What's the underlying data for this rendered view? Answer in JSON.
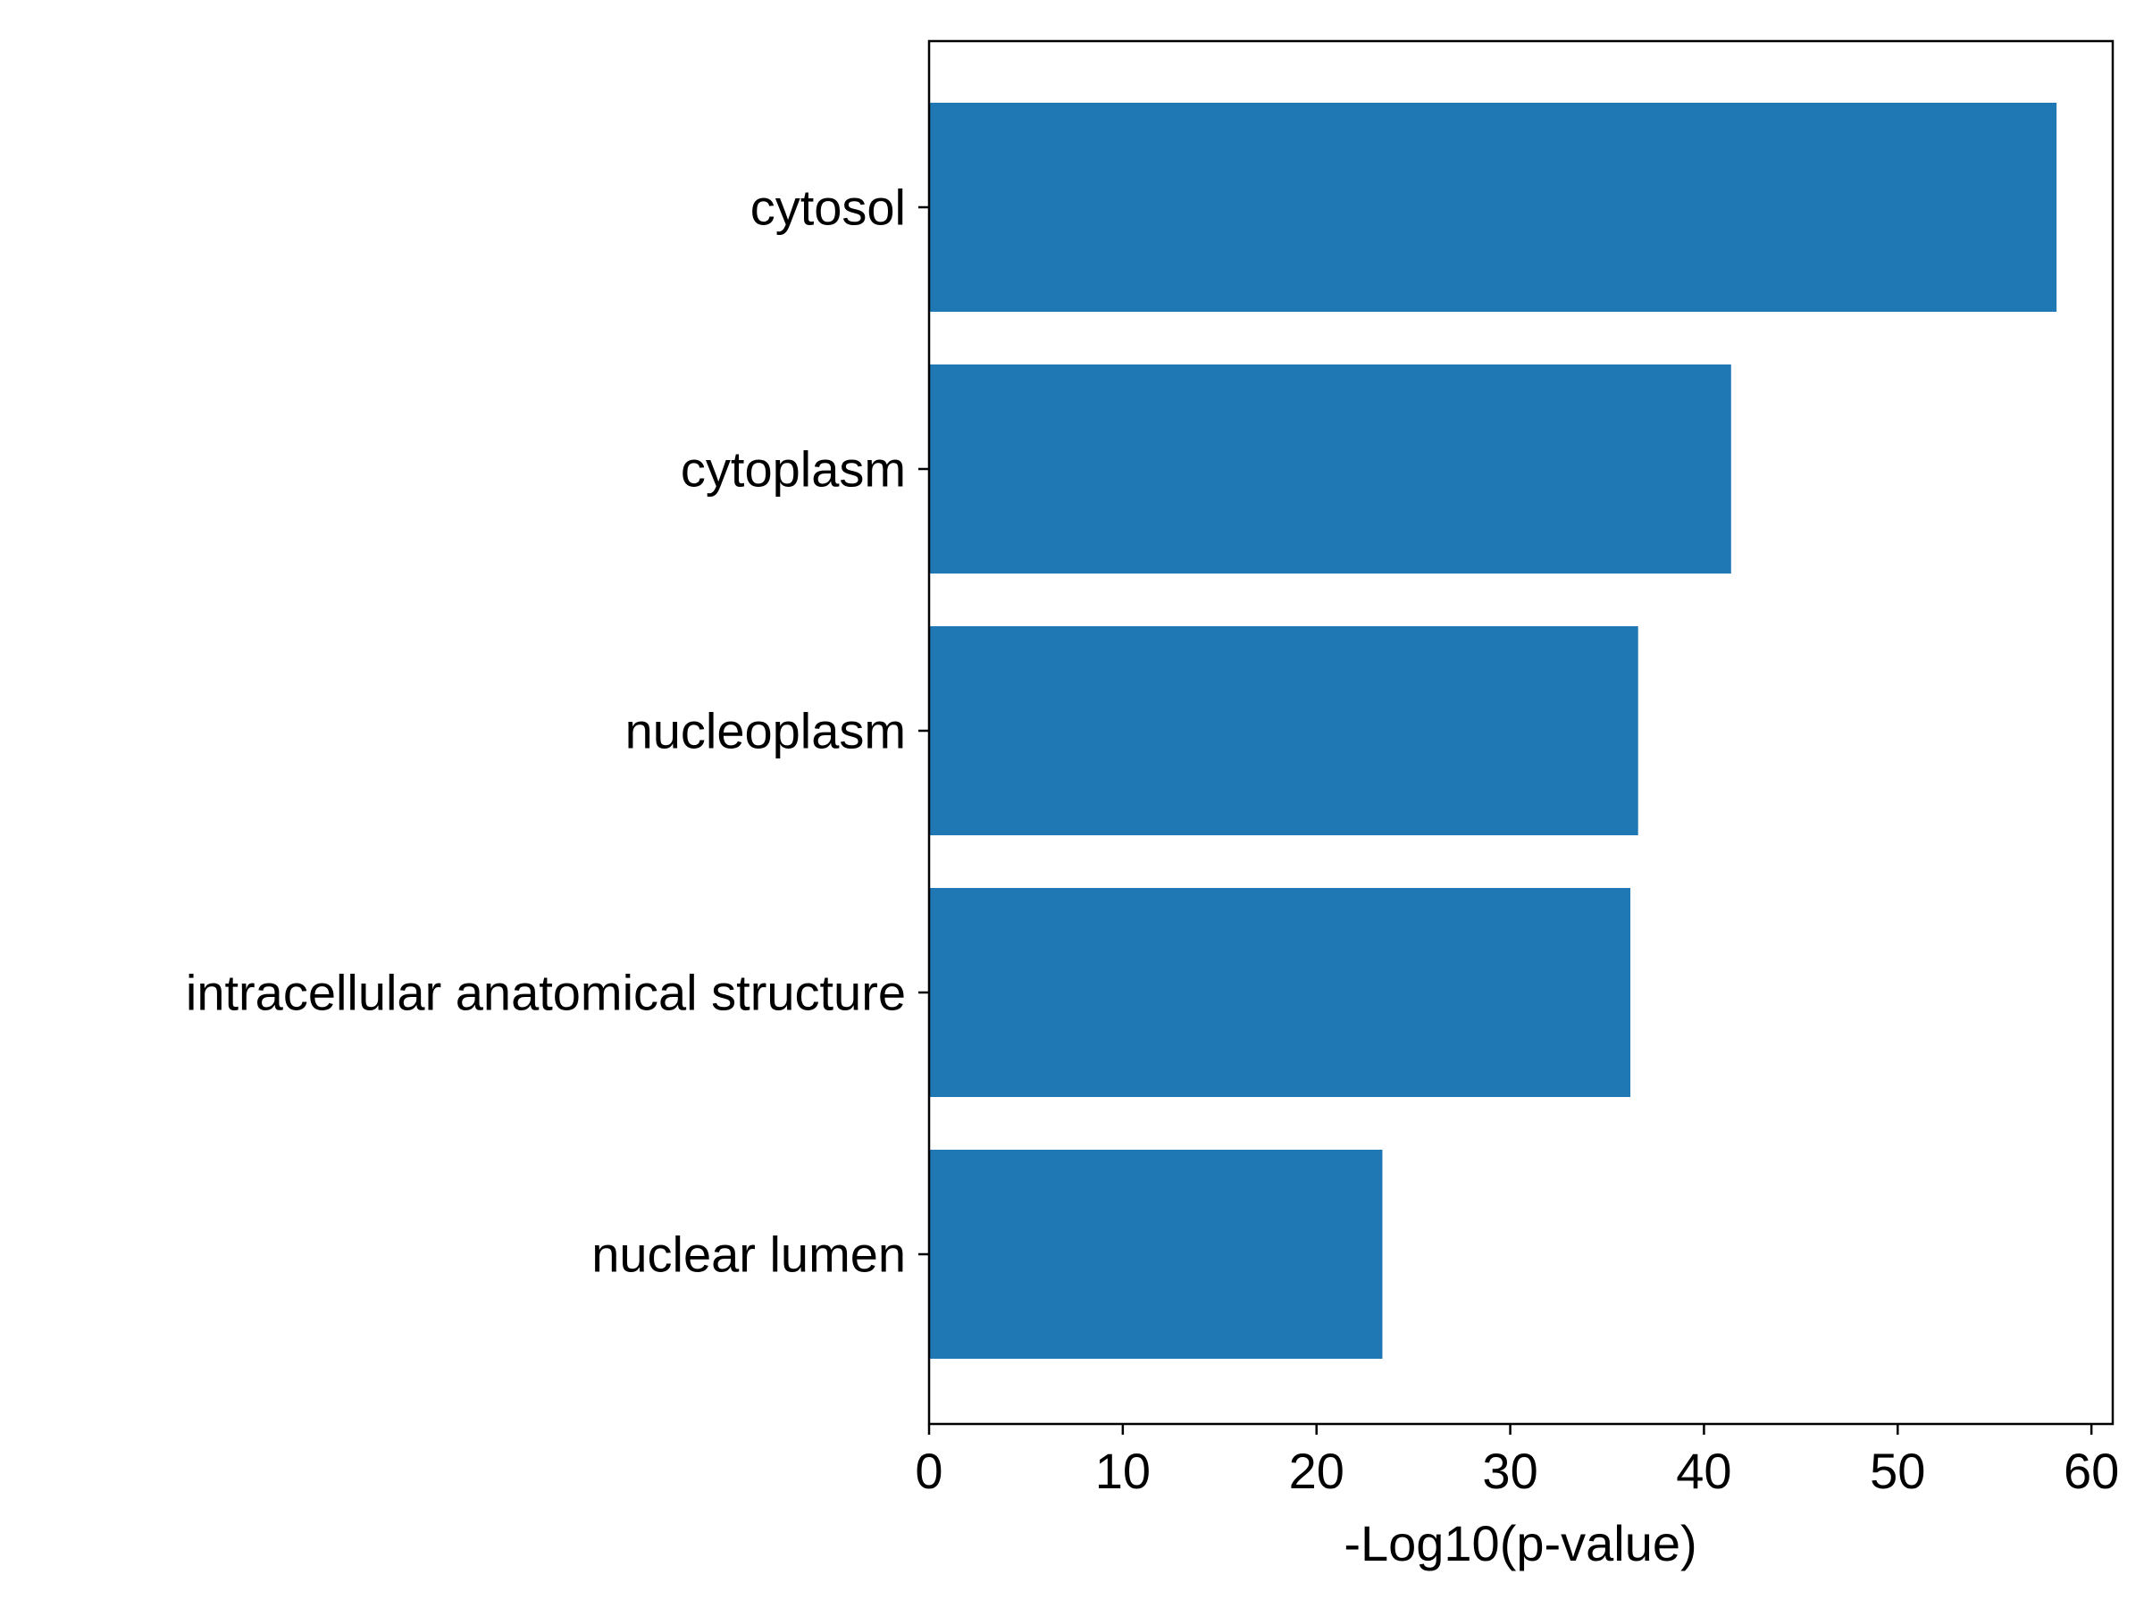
{
  "chart_data": {
    "type": "bar",
    "orientation": "horizontal",
    "title": "",
    "xlabel": "-Log10(p-value)",
    "ylabel": "",
    "categories": [
      "cytosol",
      "cytoplasm",
      "nucleoplasm",
      "intracellular anatomical structure",
      "nuclear lumen"
    ],
    "values": [
      58.2,
      41.4,
      36.6,
      36.2,
      23.4
    ],
    "xlim": [
      0,
      61.1
    ],
    "xticks": [
      0,
      10,
      20,
      30,
      40,
      50,
      60
    ],
    "xtick_labels": [
      "0",
      "10",
      "20",
      "30",
      "40",
      "50",
      "60"
    ],
    "bar_color": "#1f77b4",
    "grid": false,
    "legend": false
  }
}
